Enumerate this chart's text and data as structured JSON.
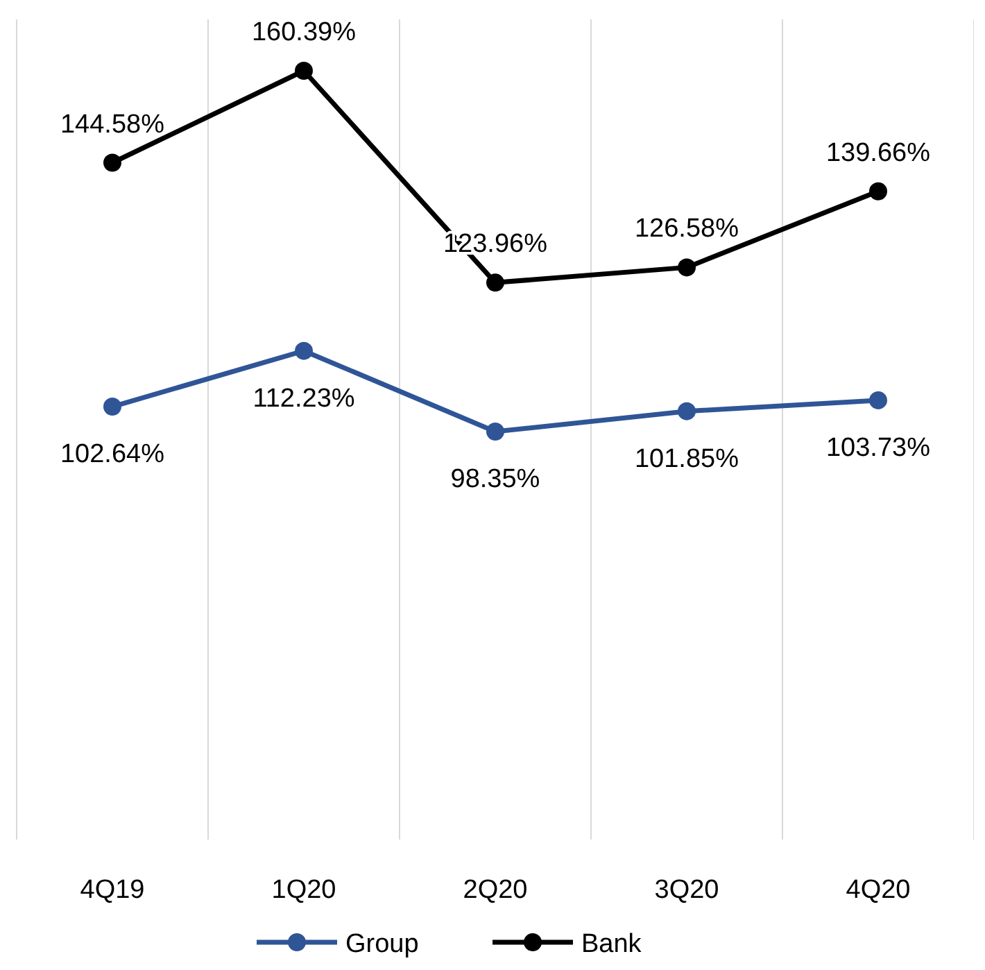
{
  "chart_data": {
    "type": "line",
    "categories": [
      "4Q19",
      "1Q20",
      "2Q20",
      "3Q20",
      "4Q20"
    ],
    "series": [
      {
        "name": "Group",
        "color": "#2f5597",
        "values": [
          102.64,
          112.23,
          98.35,
          101.85,
          103.73
        ],
        "value_labels": [
          "102.64%",
          "112.23%",
          "98.35%",
          "101.85%",
          "103.73%"
        ]
      },
      {
        "name": "Bank",
        "color": "#000000",
        "values": [
          144.58,
          160.39,
          123.96,
          126.58,
          139.66
        ],
        "value_labels": [
          "144.58%",
          "160.39%",
          "123.96%",
          "126.58%",
          "139.66%"
        ]
      }
    ],
    "tick_labels": "x",
    "grid": "x",
    "legend": "bottom",
    "marker": "circle",
    "line_style": "solid"
  }
}
